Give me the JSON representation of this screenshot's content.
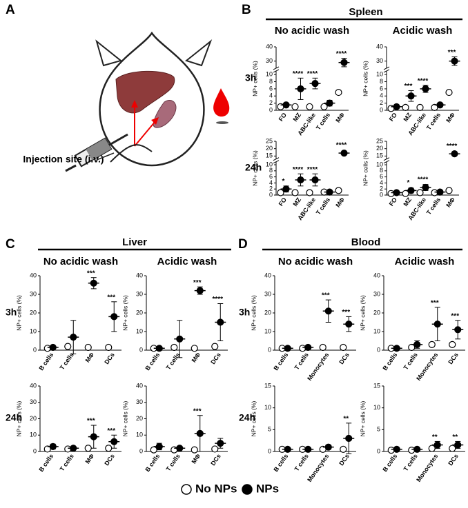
{
  "panel_a": {
    "label": "A",
    "caption": "Injection site (i.v.)"
  },
  "groups": [
    {
      "label": "B",
      "title": "Spleen",
      "columns": [
        "No acidic wash",
        "Acidic wash"
      ],
      "rows": [
        "3h",
        "24h"
      ]
    },
    {
      "label": "C",
      "title": "Liver",
      "columns": [
        "No acidic wash",
        "Acidic wash"
      ],
      "rows": [
        "3h",
        "24h"
      ]
    },
    {
      "label": "D",
      "title": "Blood",
      "columns": [
        "No acidic wash",
        "Acidic wash"
      ],
      "rows": [
        "3h",
        "24h"
      ]
    }
  ],
  "chart_data": [
    {
      "type": "dot",
      "ylabel": "NP+ cells (%)",
      "categories": [
        "FO",
        "MZ",
        "ABC-like",
        "T cells",
        "MΦ"
      ],
      "ylim": [
        0,
        40
      ],
      "yticks": [
        0,
        2,
        4,
        6,
        8,
        10,
        30,
        40
      ],
      "ybreak": [
        11,
        25
      ],
      "series": [
        {
          "name": "No NPs",
          "color": "#ffffff",
          "values": [
            1,
            1,
            1,
            1,
            5
          ]
        },
        {
          "name": "NPs",
          "color": "#000000",
          "values": [
            1.5,
            6,
            7.5,
            2,
            29
          ],
          "errors": [
            0.5,
            3,
            1.5,
            0.8,
            3
          ]
        }
      ],
      "annotations": [
        null,
        "****",
        "****",
        null,
        "****"
      ]
    },
    {
      "type": "dot",
      "ylabel": "NP+ cells (%)",
      "categories": [
        "FO",
        "MZ",
        "ABC-like",
        "T cells",
        "MΦ"
      ],
      "ylim": [
        0,
        40
      ],
      "yticks": [
        0,
        2,
        4,
        6,
        8,
        10,
        30,
        40
      ],
      "ybreak": [
        11,
        25
      ],
      "series": [
        {
          "name": "No NPs",
          "color": "#ffffff",
          "values": [
            0.5,
            0.8,
            0.8,
            0.8,
            5
          ]
        },
        {
          "name": "NPs",
          "color": "#000000",
          "values": [
            1,
            4,
            6,
            1.5,
            30
          ],
          "errors": [
            0.4,
            1.5,
            1,
            0.5,
            3
          ]
        }
      ],
      "annotations": [
        null,
        "***",
        "****",
        null,
        "***"
      ]
    },
    {
      "type": "dot",
      "ylabel": "NP+ cells (%)",
      "categories": [
        "FO",
        "MZ",
        "ABC-like",
        "T cells",
        "MΦ"
      ],
      "ylim": [
        0,
        25
      ],
      "yticks": [
        0,
        2,
        4,
        6,
        8,
        10,
        15,
        20,
        25
      ],
      "ybreak": [
        11,
        13
      ],
      "series": [
        {
          "name": "No NPs",
          "color": "#ffffff",
          "values": [
            0.8,
            0.8,
            0.8,
            1,
            1.5
          ]
        },
        {
          "name": "NPs",
          "color": "#000000",
          "values": [
            2,
            5,
            5,
            1,
            17
          ],
          "errors": [
            1,
            2,
            2,
            0.3,
            1
          ]
        }
      ],
      "annotations": [
        "*",
        "****",
        "****",
        null,
        "****"
      ]
    },
    {
      "type": "dot",
      "ylabel": "NP+ cells (%)",
      "categories": [
        "FO",
        "MZ",
        "ABC-like",
        "T cells",
        "MΦ"
      ],
      "ylim": [
        0,
        25
      ],
      "yticks": [
        0,
        2,
        4,
        6,
        8,
        10,
        15,
        20,
        25
      ],
      "ybreak": [
        11,
        13
      ],
      "series": [
        {
          "name": "No NPs",
          "color": "#ffffff",
          "values": [
            0.5,
            0.5,
            0.8,
            0.8,
            1.5
          ]
        },
        {
          "name": "NPs",
          "color": "#000000",
          "values": [
            0.8,
            1.5,
            2.5,
            1,
            16.5
          ],
          "errors": [
            0.3,
            0.8,
            1,
            0.3,
            1
          ]
        }
      ],
      "annotations": [
        null,
        "*",
        "****",
        null,
        "****"
      ]
    },
    {
      "type": "dot",
      "ylabel": "NP+ cells (%)",
      "categories": [
        "B cells",
        "T cells",
        "MΦ",
        "DCs"
      ],
      "ylim": [
        0,
        40
      ],
      "yticks": [
        0,
        10,
        20,
        30,
        40
      ],
      "series": [
        {
          "name": "No NPs",
          "color": "#ffffff",
          "values": [
            1,
            2,
            1.5,
            1.5
          ]
        },
        {
          "name": "NPs",
          "color": "#000000",
          "values": [
            1.5,
            7,
            36,
            18
          ],
          "errors": [
            0.5,
            9,
            3,
            8
          ]
        }
      ],
      "annotations": [
        null,
        null,
        "***",
        "***"
      ]
    },
    {
      "type": "dot",
      "ylabel": "NP+ cells (%)",
      "categories": [
        "B cells",
        "T cells",
        "MΦ",
        "DCs"
      ],
      "ylim": [
        0,
        40
      ],
      "yticks": [
        0,
        10,
        20,
        30,
        40
      ],
      "series": [
        {
          "name": "No NPs",
          "color": "#ffffff",
          "values": [
            1,
            1.5,
            1,
            2
          ]
        },
        {
          "name": "NPs",
          "color": "#000000",
          "values": [
            1,
            6,
            32,
            15
          ],
          "errors": [
            0.5,
            10,
            2,
            10
          ]
        }
      ],
      "annotations": [
        null,
        null,
        "***",
        "****"
      ]
    },
    {
      "type": "dot",
      "ylabel": "NP+ cells (%)",
      "categories": [
        "B cells",
        "T cells",
        "MΦ",
        "DCs"
      ],
      "ylim": [
        0,
        40
      ],
      "yticks": [
        0,
        10,
        20,
        30,
        40
      ],
      "series": [
        {
          "name": "No NPs",
          "color": "#ffffff",
          "values": [
            1.5,
            1.5,
            2,
            2
          ]
        },
        {
          "name": "NPs",
          "color": "#000000",
          "values": [
            3,
            2,
            9,
            6
          ],
          "errors": [
            1.5,
            1,
            7,
            4
          ]
        }
      ],
      "annotations": [
        null,
        null,
        "***",
        "***"
      ]
    },
    {
      "type": "dot",
      "ylabel": "NP+ cells (%)",
      "categories": [
        "B cells",
        "T cells",
        "MΦ",
        "DCs"
      ],
      "ylim": [
        0,
        40
      ],
      "yticks": [
        0,
        10,
        20,
        30,
        40
      ],
      "series": [
        {
          "name": "No NPs",
          "color": "#ffffff",
          "values": [
            1,
            1,
            1,
            1.5
          ]
        },
        {
          "name": "NPs",
          "color": "#000000",
          "values": [
            3,
            2,
            11,
            5
          ],
          "errors": [
            2,
            1,
            11,
            3
          ]
        }
      ],
      "annotations": [
        null,
        null,
        "***",
        null
      ]
    },
    {
      "type": "dot",
      "ylabel": "NP+ cells (%)",
      "categories": [
        "B cells",
        "T cells",
        "Monocytes",
        "DCs"
      ],
      "ylim": [
        0,
        40
      ],
      "yticks": [
        0,
        10,
        20,
        30,
        40
      ],
      "series": [
        {
          "name": "No NPs",
          "color": "#ffffff",
          "values": [
            1,
            1,
            1.5,
            1.5
          ]
        },
        {
          "name": "NPs",
          "color": "#000000",
          "values": [
            1,
            1.5,
            21,
            14
          ],
          "errors": [
            0.3,
            0.5,
            6,
            4
          ]
        }
      ],
      "annotations": [
        null,
        null,
        "***",
        "***"
      ]
    },
    {
      "type": "dot",
      "ylabel": "NP+ cells (%)",
      "categories": [
        "B cells",
        "T cells",
        "Monocytes",
        "DCs"
      ],
      "ylim": [
        0,
        40
      ],
      "yticks": [
        0,
        10,
        20,
        30,
        40
      ],
      "series": [
        {
          "name": "No NPs",
          "color": "#ffffff",
          "values": [
            1,
            1.5,
            3,
            3
          ]
        },
        {
          "name": "NPs",
          "color": "#000000",
          "values": [
            1,
            3,
            14,
            11
          ],
          "errors": [
            0.5,
            2,
            9,
            5
          ]
        }
      ],
      "annotations": [
        null,
        null,
        "***",
        "***"
      ]
    },
    {
      "type": "dot",
      "ylabel": "NP+ cells (%)",
      "categories": [
        "B cells",
        "T cells",
        "Monocytes",
        "DCs"
      ],
      "ylim": [
        0,
        15
      ],
      "yticks": [
        0,
        5,
        10,
        15
      ],
      "series": [
        {
          "name": "No NPs",
          "color": "#ffffff",
          "values": [
            0.5,
            0.5,
            0.5,
            0.5
          ]
        },
        {
          "name": "NPs",
          "color": "#000000",
          "values": [
            0.5,
            0.5,
            1,
            3
          ],
          "errors": [
            0.2,
            0.2,
            0.5,
            3.5
          ]
        }
      ],
      "annotations": [
        null,
        null,
        null,
        "**"
      ]
    },
    {
      "type": "dot",
      "ylabel": "NP+ cells (%)",
      "categories": [
        "B cells",
        "T cells",
        "Monocytes",
        "DCs"
      ],
      "ylim": [
        0,
        15
      ],
      "yticks": [
        0,
        5,
        10,
        15
      ],
      "series": [
        {
          "name": "No NPs",
          "color": "#ffffff",
          "values": [
            0.3,
            0.3,
            0.7,
            0.7
          ]
        },
        {
          "name": "NPs",
          "color": "#000000",
          "values": [
            0.5,
            0.5,
            1.5,
            1.5
          ],
          "errors": [
            0.2,
            0.2,
            0.8,
            0.8
          ]
        }
      ],
      "annotations": [
        null,
        null,
        "**",
        "**"
      ]
    }
  ]
}
